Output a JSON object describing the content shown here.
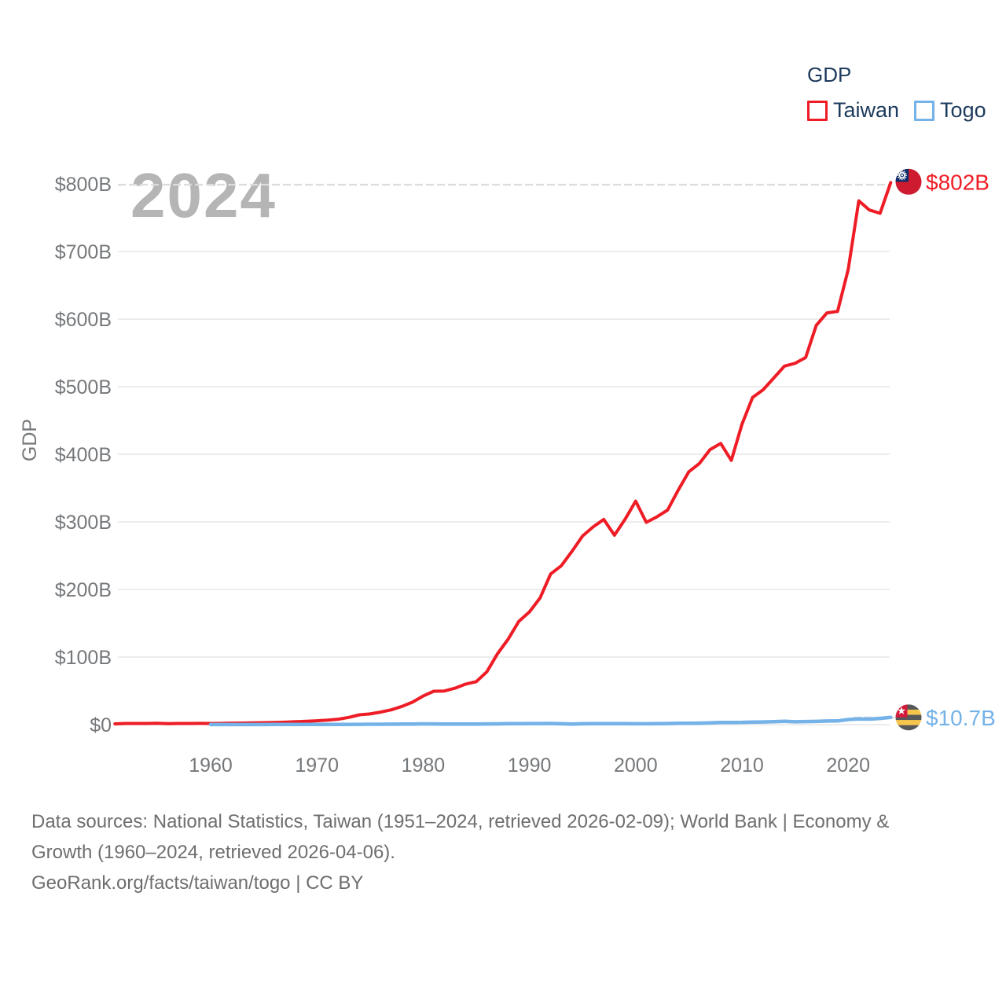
{
  "legend": {
    "title": "GDP",
    "items": [
      {
        "label": "Taiwan",
        "color": "#ee1c25"
      },
      {
        "label": "Togo",
        "color": "#74b2e8"
      }
    ]
  },
  "watermark": "2024",
  "axis": {
    "y_label": "GDP",
    "y_tick_labels": [
      "$0",
      "$100B",
      "$200B",
      "$300B",
      "$400B",
      "$500B",
      "$600B",
      "$700B",
      "$800B"
    ],
    "y_tick_values": [
      0,
      100,
      200,
      300,
      400,
      500,
      600,
      700,
      800
    ],
    "x_ticks": [
      "1960",
      "1970",
      "1980",
      "1990",
      "2000",
      "2010",
      "2020"
    ],
    "x_tick_years": [
      1960,
      1970,
      1980,
      1990,
      2000,
      2010,
      2020
    ]
  },
  "end_labels": {
    "taiwan": "$802B",
    "togo": "$10.7B"
  },
  "colors": {
    "taiwan": "#ee1c25",
    "togo": "#74b2e8",
    "tick_text": "#75787b",
    "gridline": "#ececec",
    "dashed_guide": "#dcdcdc",
    "legend_text": "#1c3a5c",
    "watermark": "#b5b5b5",
    "footer_text": "#6e6e6e"
  },
  "footer": {
    "line1": "Data sources: National Statistics, Taiwan (1951–2024, retrieved 2026-02-09); World Bank | Economy &",
    "line2": "Growth (1960–2024, retrieved 2026-04-06).",
    "line3": "GeoRank.org/facts/taiwan/togo | CC BY"
  },
  "chart_data": {
    "type": "line",
    "title": "GDP",
    "xlabel": "",
    "ylabel": "GDP",
    "ylim": [
      0,
      800
    ],
    "xlim": [
      1951,
      2024
    ],
    "grid": true,
    "legend_position": "top-right",
    "units": "USD billions",
    "current_year": "2024",
    "series": [
      {
        "name": "Taiwan",
        "color": "#ee1c25",
        "start_year": 1951,
        "end_value_label": "$802B",
        "values": [
          1.2,
          1.7,
          1.7,
          1.8,
          2.0,
          1.5,
          1.7,
          1.8,
          1.9,
          1.7,
          1.9,
          2.2,
          2.3,
          2.6,
          2.9,
          3.2,
          3.6,
          4.3,
          4.9,
          5.7,
          6.6,
          8.0,
          10.7,
          14.5,
          15.8,
          18.6,
          21.9,
          27.0,
          33.3,
          42.3,
          49.4,
          49.8,
          53.9,
          60.0,
          63.6,
          78.2,
          104.9,
          126.5,
          152.8,
          166.8,
          187.3,
          222.9,
          235.1,
          256.3,
          279.1,
          292.6,
          303.6,
          280.2,
          303.8,
          330.7,
          299.3,
          307.4,
          317.4,
          346.9,
          374.1,
          386.4,
          406.9,
          416.0,
          390.9,
          444.2,
          483.9,
          495.5,
          512.9,
          530.5,
          534.5,
          543.1,
          590.8,
          609.2,
          611.4,
          673.2,
          775.0,
          761.4,
          756.5,
          802.0
        ]
      },
      {
        "name": "Togo",
        "color": "#74b2e8",
        "start_year": 1960,
        "end_value_label": "$10.7B",
        "values": [
          0.12,
          0.13,
          0.13,
          0.14,
          0.16,
          0.17,
          0.19,
          0.21,
          0.23,
          0.25,
          0.25,
          0.26,
          0.29,
          0.34,
          0.49,
          0.58,
          0.56,
          0.64,
          0.78,
          0.87,
          1.14,
          1.03,
          0.94,
          0.84,
          0.79,
          0.81,
          1.04,
          1.21,
          1.36,
          1.35,
          1.63,
          1.63,
          1.69,
          1.33,
          0.98,
          1.31,
          1.45,
          1.5,
          1.49,
          1.4,
          1.29,
          1.32,
          1.46,
          1.67,
          1.94,
          2.12,
          2.2,
          2.52,
          3.16,
          3.26,
          3.43,
          3.87,
          3.92,
          4.34,
          4.84,
          4.18,
          4.51,
          4.8,
          5.36,
          5.49,
          7.57,
          8.41,
          8.13,
          9.17,
          10.7
        ]
      }
    ]
  }
}
